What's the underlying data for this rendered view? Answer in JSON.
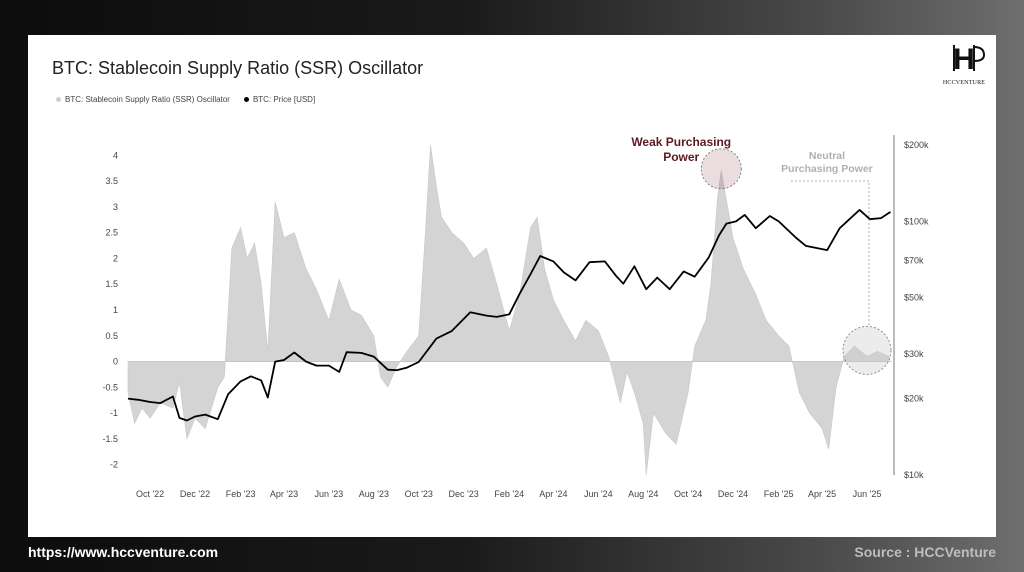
{
  "footer": {
    "website": "https://www.hccventure.com",
    "source": "Source : HCCVenture"
  },
  "logo": {
    "text": "HCCVENTURE"
  },
  "colors": {
    "background_dark": "#111111",
    "card": "#ffffff",
    "ssr_fill": "#d4d4d4",
    "price_line": "#000000",
    "weak_annotation": "#5b1a22",
    "neutral_annotation": "#b0b0b0"
  },
  "chart_data": {
    "type": "area",
    "title": "BTC: Stablecoin Supply Ratio (SSR) Oscillator",
    "legend": [
      {
        "name": "BTC: Stablecoin Supply Ratio (SSR) Oscillator",
        "color": "#d4d4d4"
      },
      {
        "name": "BTC: Price [USD]",
        "color": "#000000"
      }
    ],
    "legend_placement": "top-left",
    "grid": false,
    "x_ticks": [
      "Oct '22",
      "Dec '22",
      "Feb '23",
      "Apr '23",
      "Jun '23",
      "Aug '23",
      "Oct '23",
      "Dec '23",
      "Feb '24",
      "Apr '24",
      "Jun '24",
      "Aug '24",
      "Oct '24",
      "Dec '24",
      "Feb '25",
      "Apr '25",
      "Jun '25"
    ],
    "x_range": [
      "2022-09-01",
      "2025-07-05"
    ],
    "left_axis": {
      "label": "",
      "range": [
        -2.2,
        4.2
      ],
      "ticks": [
        4,
        3.5,
        3,
        2.5,
        2,
        1.5,
        1,
        0.5,
        0,
        -0.5,
        -1,
        -1.5,
        -2
      ]
    },
    "right_axis": {
      "label": "",
      "scale": "log",
      "range": [
        10000,
        200000
      ],
      "ticks": [
        {
          "value": 200000,
          "label": "$200k"
        },
        {
          "value": 100000,
          "label": "$100k"
        },
        {
          "value": 70000,
          "label": "$70k"
        },
        {
          "value": 50000,
          "label": "$50k"
        },
        {
          "value": 30000,
          "label": "$30k"
        },
        {
          "value": 20000,
          "label": "$20k"
        },
        {
          "value": 10000,
          "label": "$10k"
        }
      ]
    },
    "series": [
      {
        "name": "BTC: Stablecoin Supply Ratio (SSR) Oscillator",
        "axis": "left",
        "points": [
          [
            "2022-09-01",
            -0.6
          ],
          [
            "2022-09-10",
            -1.2
          ],
          [
            "2022-09-20",
            -0.9
          ],
          [
            "2022-10-01",
            -1.1
          ],
          [
            "2022-10-15",
            -0.8
          ],
          [
            "2022-11-01",
            -0.9
          ],
          [
            "2022-11-10",
            -0.4
          ],
          [
            "2022-11-20",
            -1.5
          ],
          [
            "2022-12-01",
            -1.1
          ],
          [
            "2022-12-15",
            -1.3
          ],
          [
            "2023-01-01",
            -0.5
          ],
          [
            "2023-01-10",
            -0.3
          ],
          [
            "2023-01-20",
            2.2
          ],
          [
            "2023-02-01",
            2.6
          ],
          [
            "2023-02-10",
            2.0
          ],
          [
            "2023-02-20",
            2.3
          ],
          [
            "2023-03-01",
            1.5
          ],
          [
            "2023-03-10",
            0.2
          ],
          [
            "2023-03-20",
            3.1
          ],
          [
            "2023-04-01",
            2.4
          ],
          [
            "2023-04-15",
            2.5
          ],
          [
            "2023-05-01",
            1.8
          ],
          [
            "2023-05-15",
            1.4
          ],
          [
            "2023-06-01",
            0.8
          ],
          [
            "2023-06-15",
            1.6
          ],
          [
            "2023-07-01",
            1.0
          ],
          [
            "2023-07-15",
            0.9
          ],
          [
            "2023-08-01",
            0.5
          ],
          [
            "2023-08-10",
            -0.3
          ],
          [
            "2023-08-20",
            -0.5
          ],
          [
            "2023-09-01",
            -0.1
          ],
          [
            "2023-09-15",
            0.2
          ],
          [
            "2023-10-01",
            0.5
          ],
          [
            "2023-10-10",
            2.5
          ],
          [
            "2023-10-17",
            4.2
          ],
          [
            "2023-10-25",
            3.4
          ],
          [
            "2023-11-01",
            2.8
          ],
          [
            "2023-11-15",
            2.5
          ],
          [
            "2023-12-01",
            2.3
          ],
          [
            "2023-12-15",
            2.0
          ],
          [
            "2024-01-01",
            2.2
          ],
          [
            "2024-01-15",
            1.5
          ],
          [
            "2024-02-01",
            0.6
          ],
          [
            "2024-02-15",
            1.3
          ],
          [
            "2024-03-01",
            2.6
          ],
          [
            "2024-03-10",
            2.8
          ],
          [
            "2024-03-20",
            1.8
          ],
          [
            "2024-04-01",
            1.2
          ],
          [
            "2024-04-15",
            0.8
          ],
          [
            "2024-05-01",
            0.4
          ],
          [
            "2024-05-15",
            0.8
          ],
          [
            "2024-06-01",
            0.6
          ],
          [
            "2024-06-15",
            0.1
          ],
          [
            "2024-07-01",
            -0.8
          ],
          [
            "2024-07-10",
            -0.2
          ],
          [
            "2024-07-20",
            -0.6
          ],
          [
            "2024-08-01",
            -1.2
          ],
          [
            "2024-08-05",
            -2.2
          ],
          [
            "2024-08-15",
            -1.0
          ],
          [
            "2024-09-01",
            -1.4
          ],
          [
            "2024-09-15",
            -1.6
          ],
          [
            "2024-10-01",
            -0.6
          ],
          [
            "2024-10-10",
            0.3
          ],
          [
            "2024-10-25",
            0.8
          ],
          [
            "2024-11-01",
            1.5
          ],
          [
            "2024-11-10",
            3.2
          ],
          [
            "2024-11-15",
            3.7
          ],
          [
            "2024-11-25",
            2.9
          ],
          [
            "2024-12-01",
            2.4
          ],
          [
            "2024-12-15",
            1.8
          ],
          [
            "2025-01-01",
            1.3
          ],
          [
            "2025-01-15",
            0.8
          ],
          [
            "2025-02-01",
            0.5
          ],
          [
            "2025-02-15",
            0.3
          ],
          [
            "2025-03-01",
            -0.6
          ],
          [
            "2025-03-15",
            -1.0
          ],
          [
            "2025-04-01",
            -1.3
          ],
          [
            "2025-04-10",
            -1.7
          ],
          [
            "2025-04-20",
            -0.5
          ],
          [
            "2025-05-01",
            0.1
          ],
          [
            "2025-05-15",
            0.3
          ],
          [
            "2025-06-01",
            0.1
          ],
          [
            "2025-06-15",
            0.2
          ],
          [
            "2025-07-01",
            0.1
          ]
        ]
      },
      {
        "name": "BTC: Price [USD]",
        "axis": "right",
        "points": [
          [
            "2022-09-01",
            20000
          ],
          [
            "2022-09-15",
            19800
          ],
          [
            "2022-10-01",
            19400
          ],
          [
            "2022-10-15",
            19200
          ],
          [
            "2022-11-01",
            20400
          ],
          [
            "2022-11-10",
            16800
          ],
          [
            "2022-11-20",
            16400
          ],
          [
            "2022-12-01",
            17000
          ],
          [
            "2022-12-15",
            17300
          ],
          [
            "2023-01-01",
            16600
          ],
          [
            "2023-01-15",
            20800
          ],
          [
            "2023-02-01",
            23400
          ],
          [
            "2023-02-15",
            24500
          ],
          [
            "2023-03-01",
            23600
          ],
          [
            "2023-03-10",
            20200
          ],
          [
            "2023-03-20",
            28000
          ],
          [
            "2023-04-01",
            28400
          ],
          [
            "2023-04-15",
            30400
          ],
          [
            "2023-05-01",
            28000
          ],
          [
            "2023-05-15",
            27000
          ],
          [
            "2023-06-01",
            27000
          ],
          [
            "2023-06-15",
            25500
          ],
          [
            "2023-06-25",
            30500
          ],
          [
            "2023-07-15",
            30300
          ],
          [
            "2023-08-01",
            29300
          ],
          [
            "2023-08-20",
            26000
          ],
          [
            "2023-09-01",
            25900
          ],
          [
            "2023-09-15",
            26500
          ],
          [
            "2023-10-01",
            27900
          ],
          [
            "2023-10-25",
            34500
          ],
          [
            "2023-11-15",
            37000
          ],
          [
            "2023-12-10",
            43800
          ],
          [
            "2024-01-01",
            42500
          ],
          [
            "2024-01-15",
            42000
          ],
          [
            "2024-02-01",
            43000
          ],
          [
            "2024-02-15",
            51800
          ],
          [
            "2024-03-01",
            62000
          ],
          [
            "2024-03-14",
            73000
          ],
          [
            "2024-04-01",
            69500
          ],
          [
            "2024-04-15",
            63000
          ],
          [
            "2024-05-01",
            58500
          ],
          [
            "2024-05-20",
            69000
          ],
          [
            "2024-06-10",
            69500
          ],
          [
            "2024-06-25",
            61000
          ],
          [
            "2024-07-05",
            56800
          ],
          [
            "2024-07-20",
            66500
          ],
          [
            "2024-08-05",
            54000
          ],
          [
            "2024-08-20",
            60000
          ],
          [
            "2024-09-06",
            54000
          ],
          [
            "2024-09-25",
            63500
          ],
          [
            "2024-10-10",
            60500
          ],
          [
            "2024-10-29",
            72000
          ],
          [
            "2024-11-12",
            88000
          ],
          [
            "2024-11-22",
            98000
          ],
          [
            "2024-12-05",
            100000
          ],
          [
            "2024-12-17",
            106000
          ],
          [
            "2025-01-01",
            94000
          ],
          [
            "2025-01-20",
            105000
          ],
          [
            "2025-02-01",
            100000
          ],
          [
            "2025-02-25",
            86000
          ],
          [
            "2025-03-10",
            80000
          ],
          [
            "2025-04-08",
            77000
          ],
          [
            "2025-04-25",
            94000
          ],
          [
            "2025-05-22",
            111000
          ],
          [
            "2025-06-05",
            102000
          ],
          [
            "2025-06-20",
            103000
          ],
          [
            "2025-07-03",
            109000
          ]
        ]
      }
    ],
    "annotations": [
      {
        "text": "Weak Purchasing Power",
        "date": "2024-11-15",
        "value": 3.7
      },
      {
        "text": "Neutral Purchasing Power",
        "date": "2025-06-01",
        "value": 0.1
      }
    ]
  }
}
